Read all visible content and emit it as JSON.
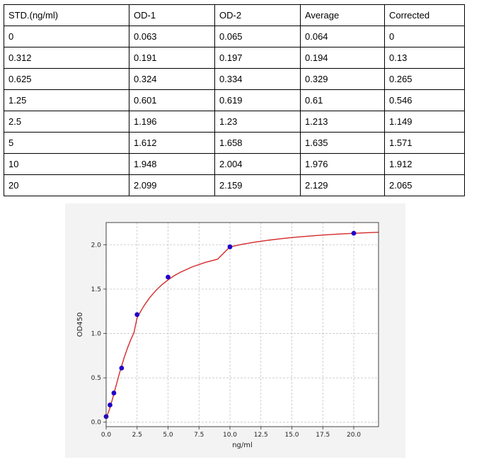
{
  "table": {
    "headers": [
      "STD.(ng/ml)",
      "OD-1",
      "OD-2",
      "Average",
      "Corrected"
    ],
    "rows": [
      [
        "0",
        "0.063",
        "0.065",
        "0.064",
        "0"
      ],
      [
        "0.312",
        "0.191",
        "0.197",
        "0.194",
        "0.13"
      ],
      [
        "0.625",
        "0.324",
        "0.334",
        "0.329",
        "0.265"
      ],
      [
        "1.25",
        "0.601",
        "0.619",
        "0.61",
        "0.546"
      ],
      [
        "2.5",
        "1.196",
        "1.23",
        "1.213",
        "1.149"
      ],
      [
        "5",
        "1.612",
        "1.658",
        "1.635",
        "1.571"
      ],
      [
        "10",
        "1.948",
        "2.004",
        "1.976",
        "1.912"
      ],
      [
        "20",
        "2.099",
        "2.159",
        "2.129",
        "2.065"
      ]
    ]
  },
  "chart_data": {
    "type": "scatter",
    "title": "",
    "xlabel": "ng/ml",
    "ylabel": "OD450",
    "xlim": [
      0,
      22
    ],
    "ylim": [
      -0.05,
      2.25
    ],
    "x_ticks": [
      "0.0",
      "2.5",
      "5.0",
      "7.5",
      "10.0",
      "12.5",
      "15.0",
      "17.5",
      "20.0"
    ],
    "y_ticks": [
      "0.0",
      "0.5",
      "1.0",
      "1.5",
      "2.0"
    ],
    "grid": true,
    "points": {
      "x": [
        0,
        0.312,
        0.625,
        1.25,
        2.5,
        5,
        10,
        20
      ],
      "y": [
        0.064,
        0.194,
        0.329,
        0.61,
        1.213,
        1.635,
        1.976,
        2.129
      ],
      "color": "#1f00c8"
    },
    "fit_curve": {
      "x": [
        0,
        0.25,
        0.5,
        0.75,
        1,
        1.25,
        1.5,
        1.75,
        2,
        2.25,
        2.5,
        3,
        3.5,
        4,
        4.5,
        5,
        5.5,
        6,
        7,
        8,
        9,
        10,
        11,
        12,
        13,
        14,
        15,
        16,
        17,
        18,
        19,
        20,
        21,
        22
      ],
      "y": [
        0.05,
        0.136,
        0.255,
        0.385,
        0.513,
        0.635,
        0.746,
        0.845,
        0.933,
        1.01,
        1.177,
        1.3,
        1.4,
        1.482,
        1.549,
        1.604,
        1.651,
        1.69,
        1.753,
        1.8,
        1.837,
        1.976,
        2.005,
        2.029,
        2.049,
        2.066,
        2.081,
        2.093,
        2.104,
        2.114,
        2.122,
        2.129,
        2.135,
        2.141
      ],
      "color": "#d42a2a"
    }
  }
}
